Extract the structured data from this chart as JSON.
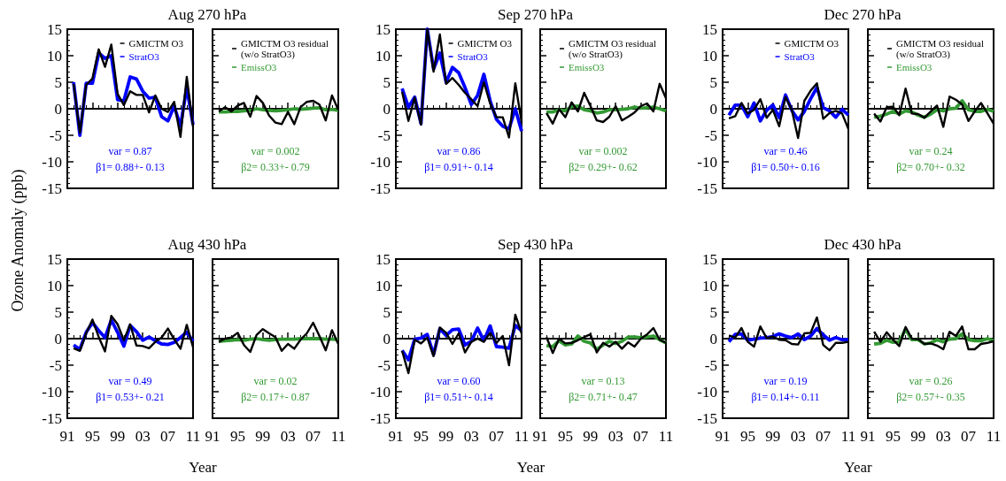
{
  "chart_data": [
    {
      "type": "line",
      "title": "Aug 270 hPa",
      "ylabel": "Ozone Anomaly (ppb)",
      "legend": "top right",
      "marker": "none",
      "tick_labels": "y",
      "xlim": [
        1991,
        2011
      ],
      "xticks": [
        1991,
        1995,
        1999,
        2003,
        2007,
        2011
      ],
      "ylim": [
        -15,
        15
      ],
      "yticks": [
        -15,
        -10,
        -5,
        0,
        5,
        10,
        15
      ],
      "annotations": [
        "var = 0.87",
        "β1= 0.88+- 0.13"
      ],
      "x": [
        1992,
        1993,
        1994,
        1995,
        1996,
        1997,
        1998,
        1999,
        2000,
        2001,
        2002,
        2003,
        2004,
        2005,
        2006,
        2007,
        2008,
        2009,
        2010,
        2011
      ],
      "series": [
        {
          "name": "GMICTM O3",
          "color": "#000000",
          "values": [
            4.7,
            -4.5,
            4.5,
            5.7,
            11.2,
            7.9,
            12.1,
            2.8,
            0.7,
            3.3,
            2.6,
            2.6,
            -0.7,
            2.5,
            0,
            -0.6,
            1.3,
            -5.3,
            6,
            -3.4
          ]
        },
        {
          "name": "StratO3",
          "color": "#0000ff",
          "values": [
            5,
            -5,
            4.8,
            4.8,
            10.5,
            9.5,
            10,
            1.7,
            1.5,
            6,
            5.6,
            3.3,
            2,
            2.2,
            -1.5,
            -2.3,
            0.5,
            -3.3,
            4,
            -3
          ]
        }
      ]
    },
    {
      "type": "line",
      "legend": "top right",
      "marker": "none",
      "tick_labels": false,
      "xlim": [
        1991,
        2011
      ],
      "xticks": [
        1991,
        1995,
        1999,
        2003,
        2007,
        2011
      ],
      "ylim": [
        -15,
        15
      ],
      "yticks": [
        -15,
        -10,
        -5,
        0,
        5,
        10,
        15
      ],
      "annotations": [
        "var = 0.002",
        "β2= 0.33+- 0.79"
      ],
      "x": [
        1992,
        1993,
        1994,
        1995,
        1996,
        1997,
        1998,
        1999,
        2000,
        2001,
        2002,
        2003,
        2004,
        2005,
        2006,
        2007,
        2008,
        2009,
        2010,
        2011
      ],
      "series": [
        {
          "name": "GMICTM O3 residual\n(w/o StratO3)",
          "color": "#000000",
          "values": [
            -0.5,
            0.3,
            -0.5,
            0.6,
            1.1,
            -1.5,
            2.4,
            1.1,
            -1.3,
            -2.6,
            -2.9,
            -0.6,
            -2.9,
            0.3,
            1.3,
            1.5,
            0.8,
            -2.2,
            2.5,
            -0.2
          ]
        },
        {
          "name": "EmissO3",
          "color": "#339933",
          "values": [
            -0.6,
            -0.6,
            -0.5,
            -0.5,
            -0.4,
            -0.3,
            0,
            -0.2,
            -0.3,
            -0.4,
            -0.3,
            -0.2,
            0,
            -0.1,
            0,
            0.1,
            0.2,
            -0.2,
            -0.1,
            -0.3
          ]
        }
      ]
    },
    {
      "type": "line",
      "title": "Sep 270 hPa",
      "legend": "top right",
      "marker": "none",
      "tick_labels": "y",
      "xlim": [
        1991,
        2011
      ],
      "xticks": [
        1991,
        1995,
        1999,
        2003,
        2007,
        2011
      ],
      "ylim": [
        -15,
        15
      ],
      "yticks": [
        -15,
        -10,
        -5,
        0,
        5,
        10,
        15
      ],
      "annotations": [
        "var = 0.86",
        "β1= 0.91+- 0.14"
      ],
      "x": [
        1992,
        1993,
        1994,
        1995,
        1996,
        1997,
        1998,
        1999,
        2000,
        2001,
        2002,
        2003,
        2004,
        2005,
        2006,
        2007,
        2008,
        2009,
        2010,
        2011
      ],
      "series": [
        {
          "name": "GMICTM O3",
          "color": "#000000",
          "values": [
            3.2,
            -2.3,
            2.1,
            -3,
            15,
            7,
            14,
            4.7,
            5.8,
            4.5,
            3,
            1.8,
            0.5,
            5,
            1,
            -1.6,
            -1.6,
            -5.4,
            4.8,
            -2.5
          ]
        },
        {
          "name": "StratO3",
          "color": "#0000ff",
          "values": [
            3.8,
            0.3,
            2.2,
            -2.8,
            15,
            7.5,
            10.5,
            5,
            7.8,
            6.8,
            4,
            0.8,
            2.5,
            6.5,
            1.5,
            -2,
            -3.3,
            -3.8,
            0,
            -4.2
          ]
        }
      ]
    },
    {
      "type": "line",
      "legend": "top right",
      "marker": "none",
      "tick_labels": false,
      "xlim": [
        1991,
        2011
      ],
      "xticks": [
        1991,
        1995,
        1999,
        2003,
        2007,
        2011
      ],
      "ylim": [
        -15,
        15
      ],
      "yticks": [
        -15,
        -10,
        -5,
        0,
        5,
        10,
        15
      ],
      "annotations": [
        "var = 0.002",
        "β2= 0.29+- 0.62"
      ],
      "x": [
        1992,
        1993,
        1994,
        1995,
        1996,
        1997,
        1998,
        1999,
        2000,
        2001,
        2002,
        2003,
        2004,
        2005,
        2006,
        2007,
        2008,
        2009,
        2010,
        2011
      ],
      "series": [
        {
          "name": "GMICTM O3 residual\n(w/o StratO3)",
          "color": "#000000",
          "values": [
            -0.8,
            -2.8,
            -0.1,
            -1.6,
            1.2,
            -0.5,
            3,
            0.5,
            -2.2,
            -2.5,
            -1.5,
            0.5,
            -2.2,
            -1.5,
            -0.7,
            0.5,
            1,
            -0.5,
            4.7,
            2
          ]
        },
        {
          "name": "EmissO3",
          "color": "#339933",
          "values": [
            -0.6,
            -0.6,
            -0.2,
            -0.4,
            0.4,
            0.5,
            -0.2,
            -0.4,
            -0.8,
            -0.6,
            -0.2,
            -0.2,
            -0.1,
            0,
            0.3,
            0.1,
            0.2,
            0.3,
            0,
            -0.4
          ]
        }
      ]
    },
    {
      "type": "line",
      "title": "Dec 270 hPa",
      "legend": "top right",
      "marker": "none",
      "tick_labels": "y",
      "xlim": [
        1991,
        2011
      ],
      "xticks": [
        1991,
        1995,
        1999,
        2003,
        2007,
        2011
      ],
      "ylim": [
        -15,
        15
      ],
      "yticks": [
        -15,
        -10,
        -5,
        0,
        5,
        10,
        15
      ],
      "annotations": [
        "var = 0.46",
        "β1= 0.50+- 0.16"
      ],
      "x": [
        1992,
        1993,
        1994,
        1995,
        1996,
        1997,
        1998,
        1999,
        2000,
        2001,
        2002,
        2003,
        2004,
        2005,
        2006,
        2007,
        2008,
        2009,
        2010,
        2011
      ],
      "series": [
        {
          "name": "GMICTM O3",
          "color": "#000000",
          "values": [
            -1.8,
            -1.4,
            1.1,
            -0.9,
            -0.2,
            1.8,
            -1.7,
            -0.2,
            -3.3,
            2.2,
            -0.2,
            -5.5,
            1.5,
            3.4,
            4.8,
            -1.9,
            -0.8,
            -0.4,
            -0.9,
            -3.8
          ]
        },
        {
          "name": "StratO3",
          "color": "#0000ff",
          "values": [
            -1.2,
            0.7,
            0.7,
            -1.5,
            1.1,
            -2.3,
            -0.3,
            0.7,
            -1.7,
            2.6,
            -0.3,
            -2.1,
            -0.5,
            1.9,
            4,
            0.2,
            -0.4,
            -1.6,
            -0.1,
            -1.2
          ]
        }
      ]
    },
    {
      "type": "line",
      "legend": "top right",
      "marker": "none",
      "tick_labels": false,
      "xlim": [
        1991,
        2011
      ],
      "xticks": [
        1991,
        1995,
        1999,
        2003,
        2007,
        2011
      ],
      "ylim": [
        -15,
        15
      ],
      "yticks": [
        -15,
        -10,
        -5,
        0,
        5,
        10,
        15
      ],
      "annotations": [
        "var = 0.24",
        "β2= 0.70+- 0.32"
      ],
      "x": [
        1992,
        1993,
        1994,
        1995,
        1996,
        1997,
        1998,
        1999,
        2000,
        2001,
        2002,
        2003,
        2004,
        2005,
        2006,
        2007,
        2008,
        2009,
        2010,
        2011
      ],
      "series": [
        {
          "name": "GMICTM O3 residual\n(w/o StratO3)",
          "color": "#000000",
          "values": [
            -0.9,
            -2.4,
            0.3,
            0.4,
            -1.2,
            3.8,
            -0.9,
            -1,
            -1.7,
            -0.5,
            0.6,
            -3.4,
            2.3,
            1.7,
            0.8,
            -2.3,
            -0.5,
            1.1,
            -0.8,
            -2.8
          ]
        },
        {
          "name": "EmissO3",
          "color": "#339933",
          "values": [
            -1.6,
            -1.4,
            -1,
            -0.5,
            -1,
            -0.4,
            -0.6,
            -1.2,
            -1.6,
            -1,
            -0.2,
            -0.4,
            0,
            0.1,
            1.5,
            -0.2,
            -0.5,
            -0.5,
            -0.1,
            -0.5
          ]
        }
      ]
    },
    {
      "type": "line",
      "title": "Aug 430 hPa",
      "xlabel": "Year",
      "marker": "none",
      "xlim": [
        1991,
        2011
      ],
      "xticks": [
        {
          "value": 1991,
          "label": "91"
        },
        {
          "value": 1995,
          "label": "95"
        },
        {
          "value": 1999,
          "label": "99"
        },
        {
          "value": 2003,
          "label": "03"
        },
        {
          "value": 2007,
          "label": "07"
        },
        {
          "value": 2011,
          "label": "11"
        }
      ],
      "ylim": [
        -15,
        15
      ],
      "yticks": [
        -15,
        -10,
        -5,
        0,
        5,
        10,
        15
      ],
      "annotations": [
        "var = 0.49",
        "β1= 0.53+- 0.21"
      ],
      "x": [
        1992,
        1993,
        1994,
        1995,
        1996,
        1997,
        1998,
        1999,
        2000,
        2001,
        2002,
        2003,
        2004,
        2005,
        2006,
        2007,
        2008,
        2009,
        2010,
        2011
      ],
      "series": [
        {
          "color": "#000000",
          "values": [
            -1.8,
            -2.3,
            1,
            3.6,
            0.3,
            -2.4,
            4.3,
            2.7,
            -0.3,
            2.7,
            -1.3,
            -1.4,
            -1.8,
            -0.6,
            0.2,
            1.9,
            -0.1,
            -1.9,
            2.6,
            -1.6
          ]
        },
        {
          "color": "#0000ff",
          "values": [
            -1.2,
            -2,
            1.2,
            3,
            1.5,
            0.2,
            3.5,
            1.2,
            -1.4,
            2.5,
            1.3,
            -0.3,
            0.3,
            -0.4,
            -1,
            -1.1,
            -0.7,
            0.2,
            1.2,
            -0.5
          ]
        }
      ]
    },
    {
      "type": "line",
      "marker": "none",
      "tick_labels": "x",
      "xlim": [
        1991,
        2011
      ],
      "xticks": [
        {
          "value": 1991,
          "label": "91"
        },
        {
          "value": 1995,
          "label": "95"
        },
        {
          "value": 1999,
          "label": "99"
        },
        {
          "value": 2003,
          "label": "03"
        },
        {
          "value": 2007,
          "label": "07"
        },
        {
          "value": 2011,
          "label": "11"
        }
      ],
      "ylim": [
        -15,
        15
      ],
      "yticks": [
        -15,
        -10,
        -5,
        0,
        5,
        10,
        15
      ],
      "annotations": [
        "var = 0.02",
        "β2= 0.17+- 0.87"
      ],
      "x": [
        1992,
        1993,
        1994,
        1995,
        1996,
        1997,
        1998,
        1999,
        2000,
        2001,
        2002,
        2003,
        2004,
        2005,
        2006,
        2007,
        2008,
        2009,
        2010,
        2011
      ],
      "series": [
        {
          "color": "#000000",
          "values": [
            -0.6,
            0,
            0.2,
            1.1,
            -1.2,
            -2.5,
            0.7,
            1.8,
            1,
            0.3,
            -2.3,
            -1,
            -1.9,
            -0.2,
            1,
            3,
            0.5,
            -2.2,
            1.6,
            -1
          ]
        },
        {
          "color": "#339933",
          "values": [
            -0.5,
            -0.4,
            -0.3,
            -0.2,
            -0.3,
            -0.1,
            0,
            -0.2,
            -0.3,
            -0.2,
            -0.1,
            -0.1,
            -0.1,
            0,
            0,
            0,
            0,
            -0.1,
            -0.1,
            -0.2
          ]
        }
      ]
    },
    {
      "type": "line",
      "title": "Sep 430 hPa",
      "xlabel": "Year",
      "marker": "none",
      "xlim": [
        1991,
        2011
      ],
      "xticks": [
        {
          "value": 1991,
          "label": "91"
        },
        {
          "value": 1995,
          "label": "95"
        },
        {
          "value": 1999,
          "label": "99"
        },
        {
          "value": 2003,
          "label": "03"
        },
        {
          "value": 2007,
          "label": "07"
        },
        {
          "value": 2011,
          "label": "11"
        }
      ],
      "ylim": [
        -15,
        15
      ],
      "yticks": [
        -15,
        -10,
        -5,
        0,
        5,
        10,
        15
      ],
      "annotations": [
        "var = 0.60",
        "β1= 0.51+- 0.14"
      ],
      "x": [
        1992,
        1993,
        1994,
        1995,
        1996,
        1997,
        1998,
        1999,
        2000,
        2001,
        2002,
        2003,
        2004,
        2005,
        2006,
        2007,
        2008,
        2009,
        2010,
        2011
      ],
      "series": [
        {
          "color": "#000000",
          "values": [
            -2.3,
            -6.5,
            -0.2,
            -0.9,
            0.2,
            -3.3,
            2.1,
            1.1,
            -1,
            1,
            -2.6,
            -0.6,
            0,
            -0.6,
            1.1,
            -0.8,
            0.5,
            -5,
            4.5,
            1
          ]
        },
        {
          "color": "#0000ff",
          "values": [
            -2.2,
            -4,
            -0.1,
            0.1,
            0.8,
            -3,
            1.9,
            0.6,
            1.7,
            1.8,
            -1.2,
            -0.5,
            2,
            -0.4,
            2.4,
            -1.5,
            -1.6,
            -1.8,
            2.5,
            1.5
          ]
        }
      ]
    },
    {
      "type": "line",
      "marker": "none",
      "tick_labels": "x",
      "xlim": [
        1991,
        2011
      ],
      "xticks": [
        {
          "value": 1991,
          "label": "91"
        },
        {
          "value": 1995,
          "label": "95"
        },
        {
          "value": 1999,
          "label": "99"
        },
        {
          "value": 2003,
          "label": "03"
        },
        {
          "value": 2007,
          "label": "07"
        },
        {
          "value": 2011,
          "label": "11"
        }
      ],
      "ylim": [
        -15,
        15
      ],
      "yticks": [
        -15,
        -10,
        -5,
        0,
        5,
        10,
        15
      ],
      "annotations": [
        "var = 0.13",
        "β2= 0.71+- 0.47"
      ],
      "x": [
        1992,
        1993,
        1994,
        1995,
        1996,
        1997,
        1998,
        1999,
        2000,
        2001,
        2002,
        2003,
        2004,
        2005,
        2006,
        2007,
        2008,
        2009,
        2010,
        2011
      ],
      "series": [
        {
          "color": "#000000",
          "values": [
            0.3,
            -2.7,
            0,
            -0.9,
            -0.8,
            -0.3,
            0.3,
            0.8,
            -2.6,
            -0.8,
            -1.5,
            -0.6,
            -1.9,
            -0.7,
            -1.5,
            0,
            0.8,
            2,
            -0.2,
            -0.8
          ]
        },
        {
          "color": "#339933",
          "values": [
            -1.3,
            -1.5,
            -0.4,
            -1.2,
            -1,
            0.5,
            -0.5,
            -0.8,
            -2,
            -1.2,
            -0.5,
            -0.9,
            -0.5,
            0.3,
            0.3,
            0.2,
            0.3,
            0.5,
            -0.2,
            -0.8
          ]
        }
      ]
    },
    {
      "type": "line",
      "title": "Dec 430 hPa",
      "xlabel": "Year",
      "marker": "none",
      "xlim": [
        1991,
        2011
      ],
      "xticks": [
        {
          "value": 1991,
          "label": "91"
        },
        {
          "value": 1995,
          "label": "95"
        },
        {
          "value": 1999,
          "label": "99"
        },
        {
          "value": 2003,
          "label": "03"
        },
        {
          "value": 2007,
          "label": "07"
        },
        {
          "value": 2011,
          "label": "11"
        }
      ],
      "ylim": [
        -15,
        15
      ],
      "yticks": [
        -15,
        -10,
        -5,
        0,
        5,
        10,
        15
      ],
      "annotations": [
        "var = 0.19",
        "β1= 0.14+- 0.11"
      ],
      "x": [
        1992,
        1993,
        1994,
        1995,
        1996,
        1997,
        1998,
        1999,
        2000,
        2001,
        2002,
        2003,
        2004,
        2005,
        2006,
        2007,
        2008,
        2009,
        2010,
        2011
      ],
      "series": [
        {
          "color": "#000000",
          "values": [
            0.6,
            0.2,
            2,
            -0.6,
            -1.5,
            2.3,
            0.1,
            0.4,
            -0.2,
            -0.3,
            -1,
            -1.1,
            1,
            1.1,
            4,
            -1.2,
            -2.2,
            -0.8,
            -0.8,
            -0.6
          ]
        },
        {
          "color": "#0000ff",
          "values": [
            -0.6,
            0.8,
            0.9,
            -0.3,
            -0.1,
            0.1,
            0.2,
            0.4,
            0.9,
            0.5,
            0.2,
            0.9,
            -0.2,
            0.5,
            1.9,
            0.7,
            -0.3,
            0.2,
            -0.2,
            -0.2
          ]
        }
      ]
    },
    {
      "type": "line",
      "marker": "none",
      "tick_labels": "x",
      "xlim": [
        1991,
        2011
      ],
      "xticks": [
        {
          "value": 1991,
          "label": "91"
        },
        {
          "value": 1995,
          "label": "95"
        },
        {
          "value": 1999,
          "label": "99"
        },
        {
          "value": 2003,
          "label": "03"
        },
        {
          "value": 2007,
          "label": "07"
        },
        {
          "value": 2011,
          "label": "11"
        }
      ],
      "ylim": [
        -15,
        15
      ],
      "yticks": [
        -15,
        -10,
        -5,
        0,
        5,
        10,
        15
      ],
      "annotations": [
        "var = 0.26",
        "β2= 0.57+- 0.35"
      ],
      "x": [
        1992,
        1993,
        1994,
        1995,
        1996,
        1997,
        1998,
        1999,
        2000,
        2001,
        2002,
        2003,
        2004,
        2005,
        2006,
        2007,
        2008,
        2009,
        2010,
        2011
      ],
      "series": [
        {
          "color": "#000000",
          "values": [
            1.3,
            -0.6,
            1.2,
            -0.2,
            -1.4,
            2.2,
            0,
            -0.1,
            -1,
            -0.9,
            -1.3,
            -2,
            1.3,
            0.5,
            2.3,
            -2,
            -2,
            -1,
            -0.8,
            -0.5
          ]
        },
        {
          "color": "#339933",
          "values": [
            -1,
            -0.9,
            -0.3,
            -0.7,
            -0.6,
            1.8,
            -0.2,
            -0.2,
            -1,
            -0.8,
            -0.2,
            -0.6,
            -0.1,
            0,
            0.9,
            -0.2,
            -0.4,
            -0.4,
            0,
            -0.4
          ]
        }
      ]
    }
  ]
}
